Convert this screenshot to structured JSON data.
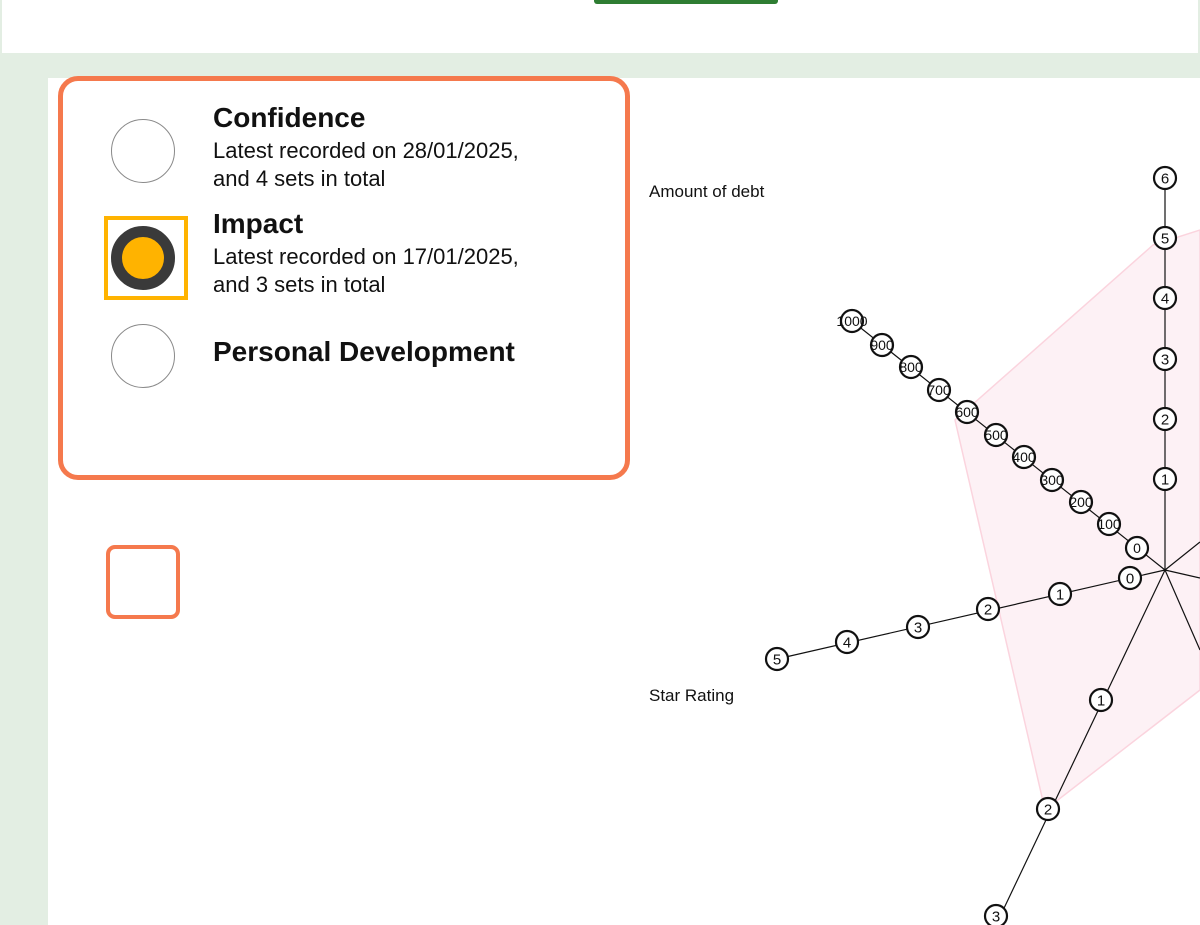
{
  "options": [
    {
      "title": "Confidence",
      "subtitle_line1": "Latest recorded on 28/01/2025,",
      "subtitle_line2": "and 4 sets in total",
      "selected": false
    },
    {
      "title": "Impact",
      "subtitle_line1": "Latest recorded on 17/01/2025,",
      "subtitle_line2": "and 3 sets in total",
      "selected": true
    },
    {
      "title": "Personal Development",
      "subtitle_line1": "",
      "subtitle_line2": "",
      "selected": false
    }
  ],
  "radar": {
    "axis_labels": {
      "debt": "Amount of debt",
      "star": "Star Rating"
    },
    "vertical_axis_ticks": [
      "1",
      "2",
      "3",
      "4",
      "5",
      "6"
    ],
    "debt_axis_ticks": [
      "0",
      "100",
      "200",
      "300",
      "400",
      "500",
      "600",
      "700",
      "800",
      "900",
      "1000"
    ],
    "star_axis_ticks": [
      "0",
      "1",
      "2",
      "3",
      "4",
      "5"
    ],
    "lower_axis_ticks": [
      "1",
      "2",
      "3"
    ],
    "colors": {
      "area_fill": "#fdf1f5",
      "area_stroke": "#fbd4de",
      "axis": "#111111"
    }
  }
}
